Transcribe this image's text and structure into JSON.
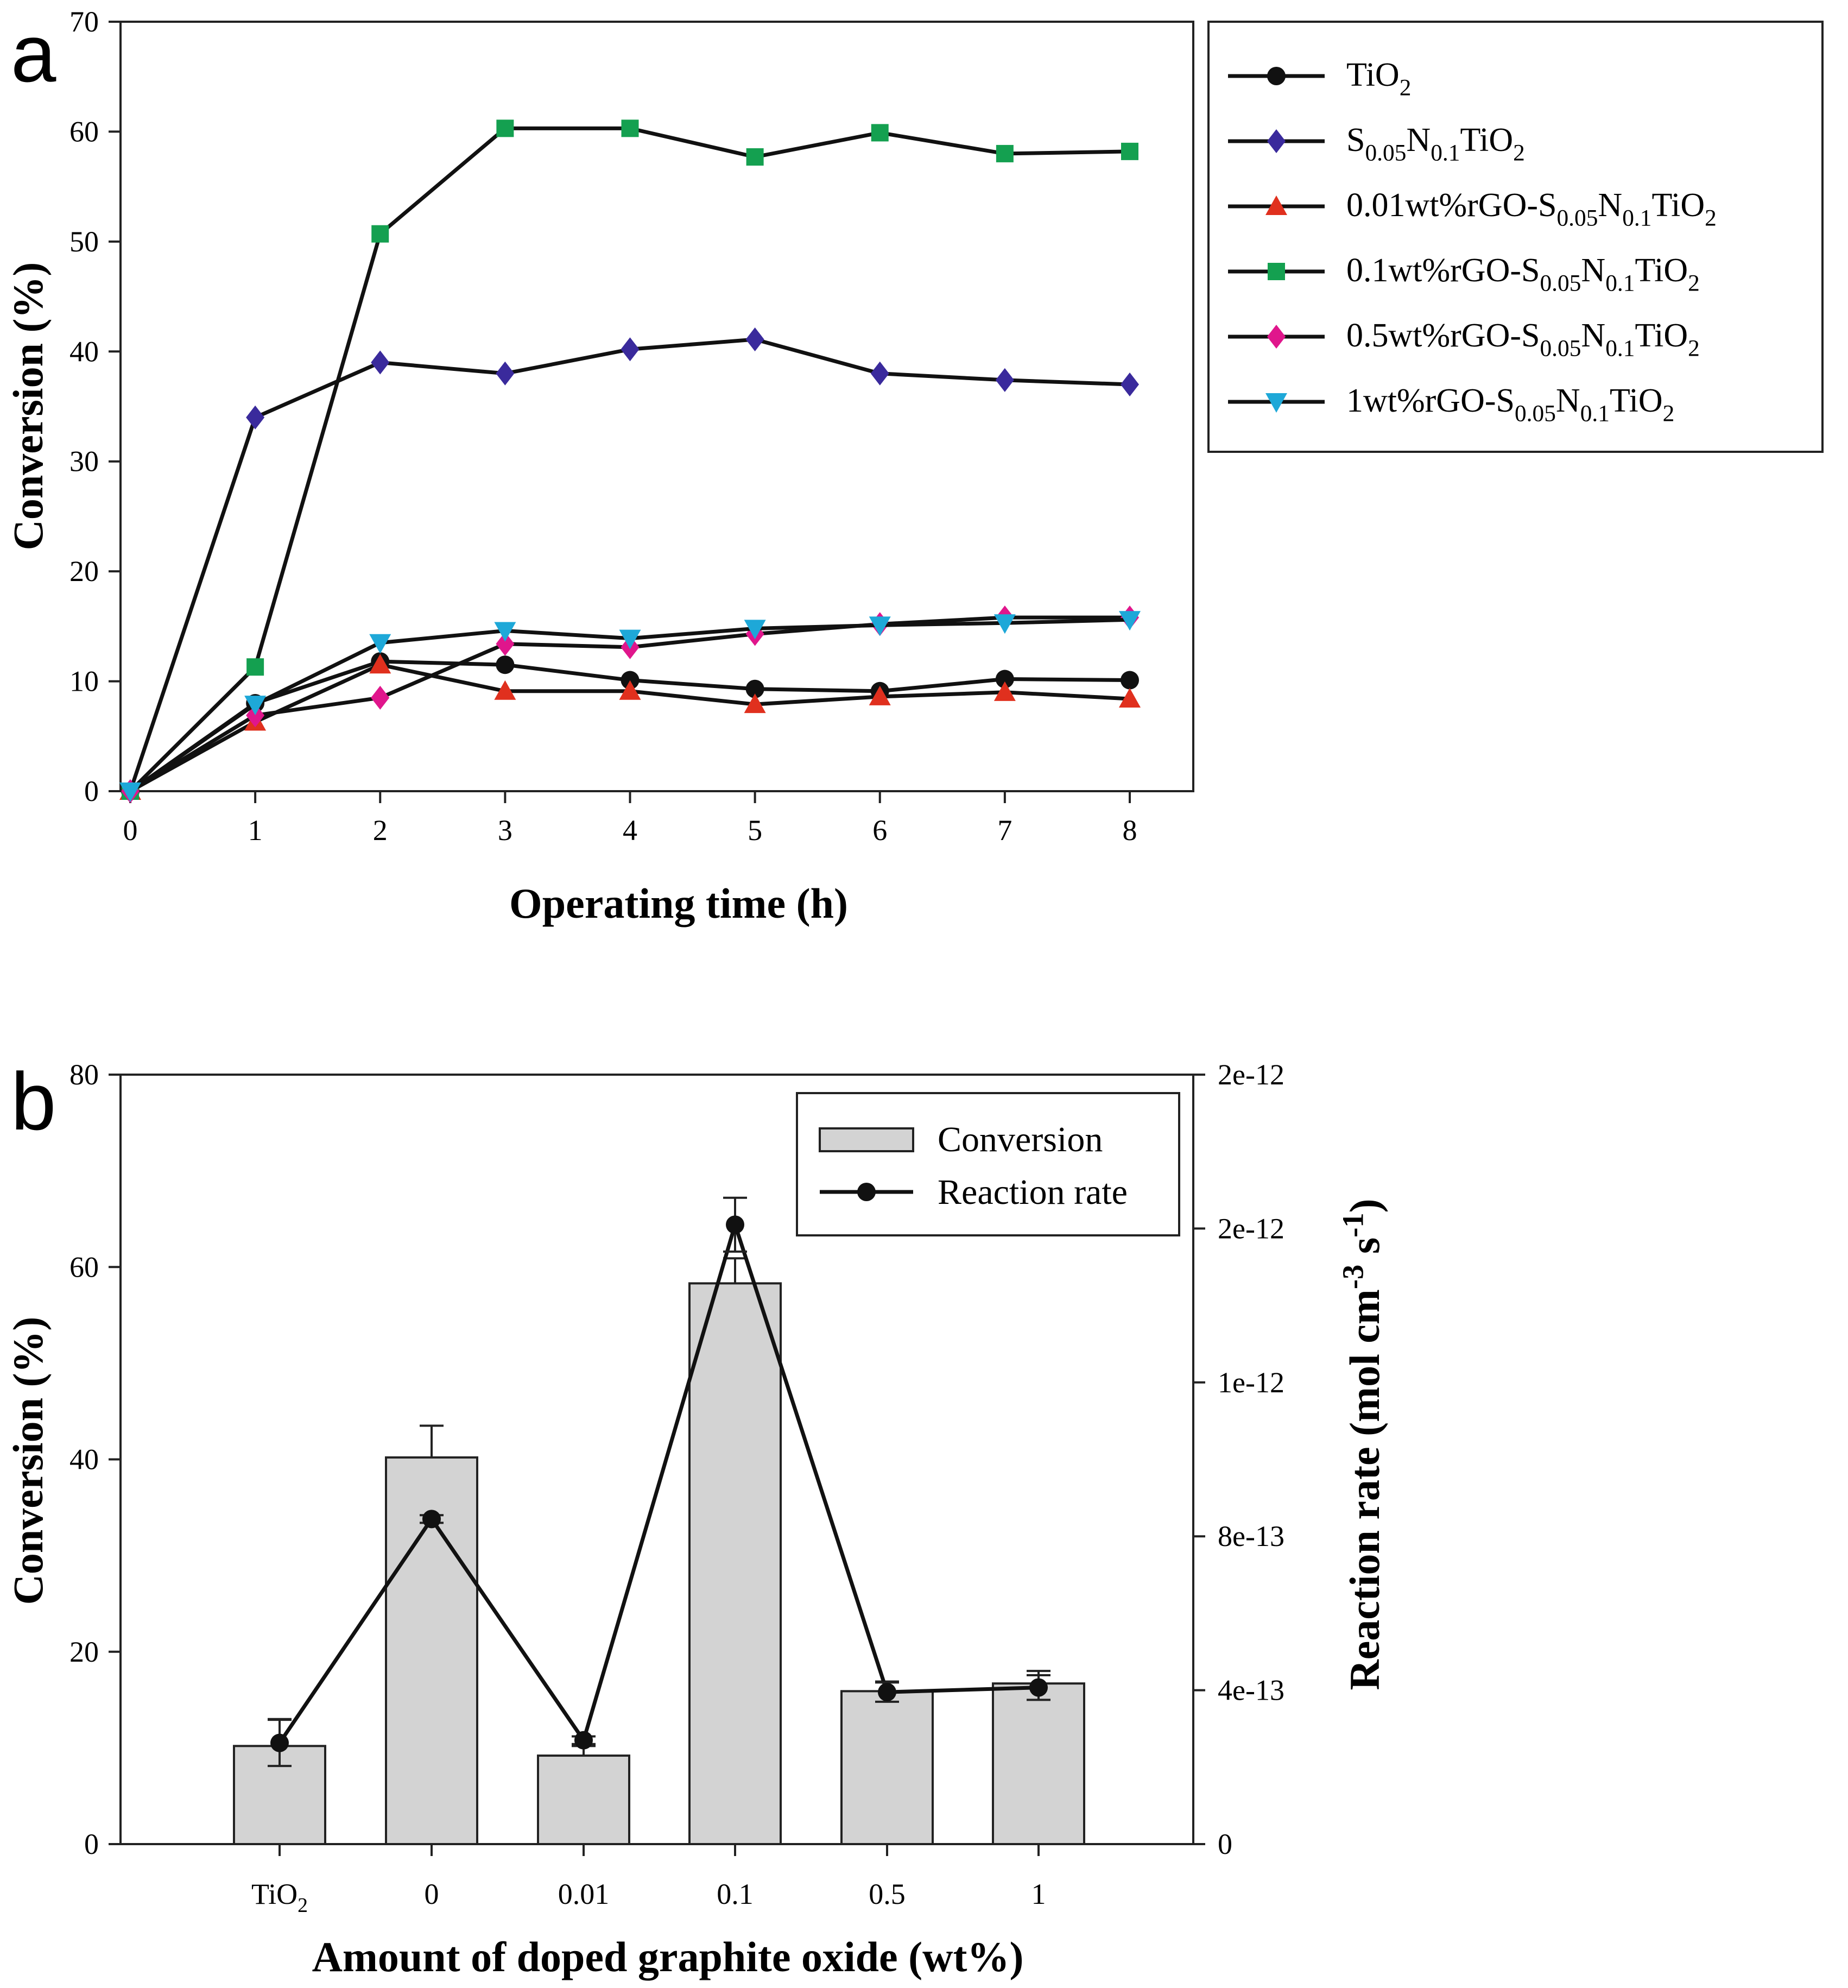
{
  "chart_data": [
    {
      "panel_label": "a",
      "type": "line",
      "xlabel": "Operating time (h)",
      "ylabel": "Conversion (%)",
      "xlim": [
        0,
        8
      ],
      "ylim": [
        0,
        70
      ],
      "xticks": [
        "0",
        "1",
        "2",
        "3",
        "4",
        "5",
        "6",
        "7",
        "8"
      ],
      "yticks": [
        "0",
        "10",
        "20",
        "30",
        "40",
        "50",
        "60",
        "70"
      ],
      "grid": false,
      "legend_position": "outside-right",
      "x": [
        0,
        1,
        2,
        3,
        4,
        5,
        6,
        7,
        8
      ],
      "series": [
        {
          "name": "TiO2",
          "label_parts": [
            {
              "t": "TiO"
            },
            {
              "t": "2",
              "sub": true
            }
          ],
          "marker": "circle",
          "color": "#111111",
          "values": [
            0,
            8.0,
            11.8,
            11.5,
            10.1,
            9.3,
            9.1,
            10.2,
            10.1
          ]
        },
        {
          "name": "S0.05N0.1TiO2",
          "label_parts": [
            {
              "t": "S"
            },
            {
              "t": "0.05",
              "sub": true
            },
            {
              "t": "N"
            },
            {
              "t": "0.1",
              "sub": true
            },
            {
              "t": "TiO"
            },
            {
              "t": "2",
              "sub": true
            }
          ],
          "marker": "diamond",
          "color": "#3a2a9c",
          "values": [
            0,
            34.0,
            39.0,
            38.0,
            40.2,
            41.1,
            38.0,
            37.4,
            37.0
          ]
        },
        {
          "name": "0.01wt%rGO-S0.05N0.1TiO2",
          "label_parts": [
            {
              "t": "0.01wt%rGO-S"
            },
            {
              "t": "0.05",
              "sub": true
            },
            {
              "t": "N"
            },
            {
              "t": "0.1",
              "sub": true
            },
            {
              "t": "TiO"
            },
            {
              "t": "2",
              "sub": true
            }
          ],
          "marker": "triangle-up",
          "color": "#e0301e",
          "values": [
            0,
            6.3,
            11.5,
            9.1,
            9.1,
            7.9,
            8.6,
            9.0,
            8.4
          ]
        },
        {
          "name": "0.1wt%rGO-S0.05N0.1TiO2",
          "label_parts": [
            {
              "t": "0.1wt%rGO-S"
            },
            {
              "t": "0.05",
              "sub": true
            },
            {
              "t": "N"
            },
            {
              "t": "0.1",
              "sub": true
            },
            {
              "t": "TiO"
            },
            {
              "t": "2",
              "sub": true
            }
          ],
          "marker": "square",
          "color": "#14a050",
          "values": [
            0,
            11.3,
            50.7,
            60.3,
            60.3,
            57.7,
            59.9,
            58.0,
            58.2
          ]
        },
        {
          "name": "0.5wt%rGO-S0.05N0.1TiO2",
          "label_parts": [
            {
              "t": "0.5wt%rGO-S"
            },
            {
              "t": "0.05",
              "sub": true
            },
            {
              "t": "N"
            },
            {
              "t": "0.1",
              "sub": true
            },
            {
              "t": "TiO"
            },
            {
              "t": "2",
              "sub": true
            }
          ],
          "marker": "diamond",
          "color": "#e0168c",
          "values": [
            0,
            6.9,
            8.5,
            13.4,
            13.1,
            14.3,
            15.2,
            15.8,
            15.8
          ]
        },
        {
          "name": "1wt%rGO-S0.05N0.1TiO2",
          "label_parts": [
            {
              "t": "1wt%rGO-S"
            },
            {
              "t": "0.05",
              "sub": true
            },
            {
              "t": "N"
            },
            {
              "t": "0.1",
              "sub": true
            },
            {
              "t": "TiO"
            },
            {
              "t": "2",
              "sub": true
            }
          ],
          "marker": "triangle-down",
          "color": "#1ea8d8",
          "values": [
            0,
            7.9,
            13.5,
            14.6,
            13.9,
            14.8,
            15.1,
            15.3,
            15.6
          ]
        }
      ]
    },
    {
      "panel_label": "b",
      "type": "bar",
      "xlabel": "Amount of doped graphite oxide (wt%)",
      "ylabel": "Conversion (%)",
      "y2label_parts": [
        {
          "t": "Reaction rate (mol cm"
        },
        {
          "t": "-3",
          "sup": true
        },
        {
          "t": " s"
        },
        {
          "t": "-1",
          "sup": true
        },
        {
          "t": ")"
        }
      ],
      "ylim": [
        0,
        80
      ],
      "y2lim": [
        0,
        2e-12
      ],
      "yticks": [
        "0",
        "20",
        "40",
        "60",
        "80"
      ],
      "y2ticks": [
        {
          "value": 0,
          "label": "0"
        },
        {
          "value": 4e-13,
          "label": "4e-13"
        },
        {
          "value": 8e-13,
          "label": "8e-13"
        },
        {
          "value": 1.2e-12,
          "label": "1e-12"
        },
        {
          "value": 1.6e-12,
          "label": "2e-12"
        },
        {
          "value": 2e-12,
          "label": "2e-12"
        }
      ],
      "categories": [
        {
          "parts": [
            {
              "t": "TiO"
            },
            {
              "t": "2",
              "sub": true
            }
          ]
        },
        {
          "parts": [
            {
              "t": "0"
            }
          ]
        },
        {
          "parts": [
            {
              "t": "0.01"
            }
          ]
        },
        {
          "parts": [
            {
              "t": "0.1"
            }
          ]
        },
        {
          "parts": [
            {
              "t": "0.5"
            }
          ]
        },
        {
          "parts": [
            {
              "t": "1"
            }
          ]
        }
      ],
      "legend_position": "top-right",
      "series": [
        {
          "name": "Conversion",
          "kind": "bar",
          "color": "#d3d3d3",
          "values": [
            10.2,
            40.2,
            9.2,
            58.3,
            15.9,
            16.7
          ],
          "errors": [
            2.8,
            3.3,
            1.0,
            2.6,
            1.0,
            1.3
          ]
        },
        {
          "name": "Reaction rate",
          "kind": "line",
          "color": "#111111",
          "values": [
            2.63e-13,
            8.45e-13,
            2.7e-13,
            1.61e-12,
            3.95e-13,
            4.07e-13
          ],
          "errors": [
            6e-14,
            1e-14,
            1e-14,
            7e-14,
            2.5e-14,
            3.2e-14
          ]
        }
      ]
    }
  ]
}
